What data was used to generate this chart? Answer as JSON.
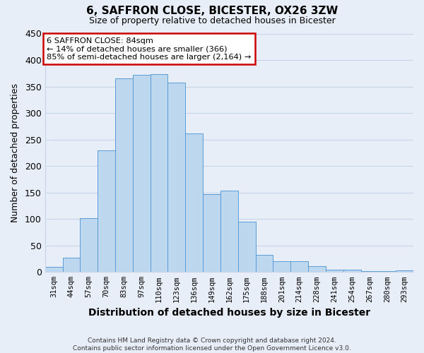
{
  "title": "6, SAFFRON CLOSE, BICESTER, OX26 3ZW",
  "subtitle": "Size of property relative to detached houses in Bicester",
  "xlabel": "Distribution of detached houses by size in Bicester",
  "ylabel": "Number of detached properties",
  "categories": [
    "31sqm",
    "44sqm",
    "57sqm",
    "70sqm",
    "83sqm",
    "97sqm",
    "110sqm",
    "123sqm",
    "136sqm",
    "149sqm",
    "162sqm",
    "175sqm",
    "188sqm",
    "201sqm",
    "214sqm",
    "228sqm",
    "241sqm",
    "254sqm",
    "267sqm",
    "280sqm",
    "293sqm"
  ],
  "values": [
    10,
    27,
    101,
    230,
    366,
    372,
    374,
    357,
    261,
    147,
    154,
    95,
    33,
    21,
    21,
    11,
    4,
    4,
    2,
    2,
    3
  ],
  "bar_color": "#bdd7ee",
  "bar_edge_color": "#5b9bd5",
  "annotation_line1": "6 SAFFRON CLOSE: 84sqm",
  "annotation_line2": "← 14% of detached houses are smaller (366)",
  "annotation_line3": "85% of semi-detached houses are larger (2,164) →",
  "annotation_box_facecolor": "#ffffff",
  "annotation_box_edgecolor": "#cc0000",
  "ylim": [
    0,
    450
  ],
  "yticks": [
    0,
    50,
    100,
    150,
    200,
    250,
    300,
    350,
    400,
    450
  ],
  "grid_color": "#c8d4e8",
  "bg_color": "#e8eef8",
  "footer_line1": "Contains HM Land Registry data © Crown copyright and database right 2024.",
  "footer_line2": "Contains public sector information licensed under the Open Government Licence v3.0."
}
